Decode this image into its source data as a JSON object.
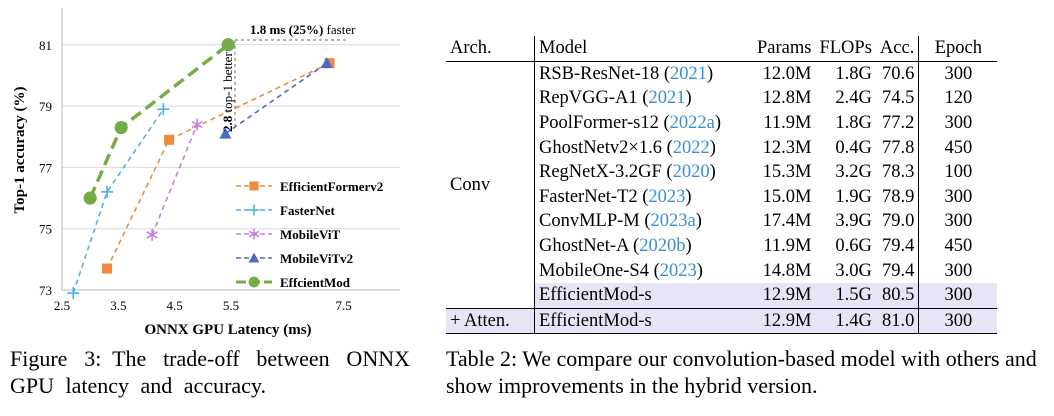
{
  "figure": {
    "caption_label": "Figure 3:",
    "caption_text": "The trade-off between ONNX GPU latency and accuracy."
  },
  "chart_data": {
    "type": "line",
    "xlabel": "ONNX GPU Latency (ms)",
    "ylabel": "Top-1 accuracy (%)",
    "xlim": [
      2.5,
      8.5
    ],
    "ylim": [
      73,
      82.2
    ],
    "xticks": [
      "2.5",
      "3.5",
      "4.5",
      "5.5",
      "7.5"
    ],
    "yticks": [
      "73",
      "75",
      "77",
      "79",
      "81"
    ],
    "legend_position": "center-right",
    "series": [
      {
        "name": "EfficientFormerv2",
        "color": "#ef8a3c",
        "marker": "square",
        "x": [
          3.3,
          4.4,
          7.25
        ],
        "y": [
          73.7,
          77.9,
          80.4
        ]
      },
      {
        "name": "FasterNet",
        "color": "#4fb0e6",
        "marker": "plus",
        "x": [
          2.7,
          3.3,
          4.3
        ],
        "y": [
          72.9,
          76.2,
          78.9
        ]
      },
      {
        "name": "MobileViT",
        "color": "#c27ee0",
        "marker": "asterisk",
        "x": [
          4.1,
          4.9
        ],
        "y": [
          74.8,
          78.4
        ]
      },
      {
        "name": "MobileViTv2",
        "color": "#4a6cc4",
        "marker": "triangle",
        "x": [
          5.4,
          7.2
        ],
        "y": [
          78.1,
          80.4
        ]
      },
      {
        "name": "EffcientMod",
        "color": "#76ac48",
        "marker": "circle",
        "x": [
          3.0,
          3.55,
          5.45
        ],
        "y": [
          76.0,
          78.3,
          81.0
        ]
      }
    ],
    "annotations": {
      "faster_bold": "1.8 ms (25%)",
      "faster_rest": " faster",
      "better_bold": "2.8",
      "better_rest": " top-1 better"
    }
  },
  "table": {
    "caption": "Table 2: We compare our convolution-based model with others and show improvements in the hybrid version.",
    "headers": {
      "arch": "Arch.",
      "model": "Model",
      "params": "Params",
      "flops": "FLOPs",
      "acc": "Acc.",
      "epoch": "Epoch"
    },
    "conv_label": "Conv",
    "atten_label": "+ Atten.",
    "rows": [
      {
        "model": "RSB-ResNet-18 (",
        "year": "2021",
        "close": ")",
        "params": "12.0M",
        "flops": "1.8G",
        "acc": "70.6",
        "epoch": "300"
      },
      {
        "model": "RepVGG-A1 (",
        "year": "2021",
        "close": ")",
        "params": "12.8M",
        "flops": "2.4G",
        "acc": "74.5",
        "epoch": "120"
      },
      {
        "model": "PoolFormer-s12 (",
        "year": "2022a",
        "close": ")",
        "params": "11.9M",
        "flops": "1.8G",
        "acc": "77.2",
        "epoch": "300"
      },
      {
        "model": "GhostNetv2×1.6 (",
        "year": "2022",
        "close": ")",
        "params": "12.3M",
        "flops": "0.4G",
        "acc": "77.8",
        "epoch": "450"
      },
      {
        "model": "RegNetX-3.2GF (",
        "year": "2020",
        "close": ")",
        "params": "15.3M",
        "flops": "3.2G",
        "acc": "78.3",
        "epoch": "100"
      },
      {
        "model": "FasterNet-T2 (",
        "year": "2023",
        "close": ")",
        "params": "15.0M",
        "flops": "1.9G",
        "acc": "78.9",
        "epoch": "300"
      },
      {
        "model": "ConvMLP-M (",
        "year": "2023a",
        "close": ")",
        "params": "17.4M",
        "flops": "3.9G",
        "acc": "79.0",
        "epoch": "300"
      },
      {
        "model": "GhostNet-A (",
        "year": "2020b",
        "close": ")",
        "params": "11.9M",
        "flops": "0.6G",
        "acc": "79.4",
        "epoch": "450"
      },
      {
        "model": "MobileOne-S4 (",
        "year": "2023",
        "close": ")",
        "params": "14.8M",
        "flops": "3.0G",
        "acc": "79.4",
        "epoch": "300"
      },
      {
        "model": "EfficientMod-s",
        "year": "",
        "close": "",
        "params": "12.9M",
        "flops": "1.5G",
        "acc": "80.5",
        "epoch": "300"
      }
    ],
    "atten_row": {
      "model": "EfficientMod-s",
      "params": "12.9M",
      "flops": "1.4G",
      "acc": "81.0",
      "epoch": "300"
    }
  }
}
